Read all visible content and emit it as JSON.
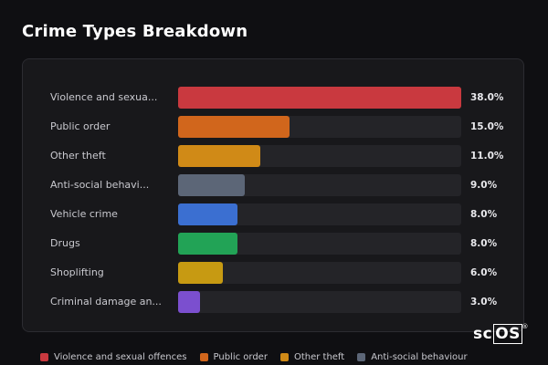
{
  "title": "Crime Types Breakdown",
  "logo": {
    "text_a": "sc",
    "text_b": "OS",
    "mark": "®"
  },
  "chart_data": {
    "type": "bar",
    "orientation": "horizontal",
    "xlim": [
      0,
      38
    ],
    "categories": [
      "Violence and sexua...",
      "Public order",
      "Other theft",
      "Anti-social behavi...",
      "Vehicle crime",
      "Drugs",
      "Shoplifting",
      "Criminal damage an..."
    ],
    "values": [
      38.0,
      15.0,
      11.0,
      9.0,
      8.0,
      8.0,
      6.0,
      3.0
    ],
    "value_labels": [
      "38.0%",
      "15.0%",
      "11.0%",
      "9.0%",
      "8.0%",
      "8.0%",
      "6.0%",
      "3.0%"
    ],
    "colors": [
      "#c9393f",
      "#d1661c",
      "#d08a17",
      "#5c6677",
      "#3b6fd1",
      "#22a356",
      "#c79a12",
      "#7b4fcf"
    ]
  },
  "legend": [
    {
      "label": "Violence and sexual offences",
      "color": "#c9393f"
    },
    {
      "label": "Public order",
      "color": "#d1661c"
    },
    {
      "label": "Other theft",
      "color": "#d08a17"
    },
    {
      "label": "Anti-social behaviour",
      "color": "#5c6677"
    }
  ]
}
